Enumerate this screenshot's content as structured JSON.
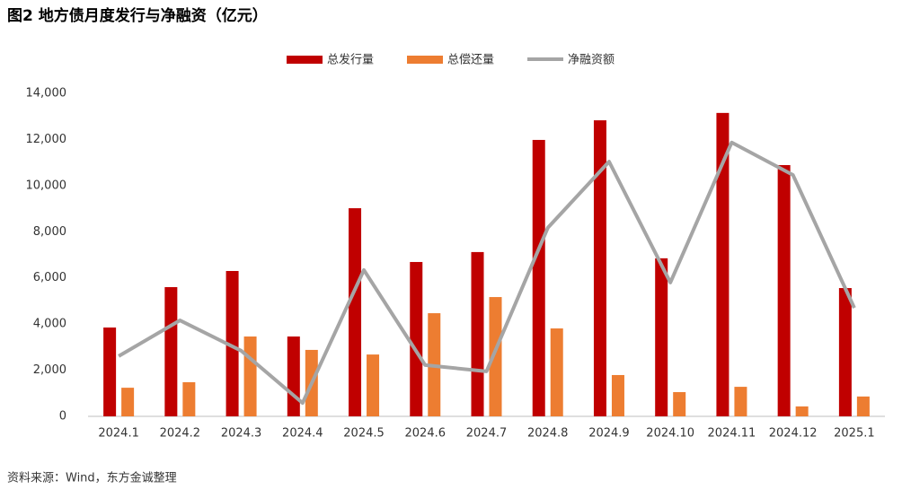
{
  "chart_data": {
    "type": "bar-line",
    "title": "图2 地方债月度发行与净融资（亿元）",
    "source": "资料来源：Wind，东方金诚整理",
    "categories": [
      "2024.1",
      "2024.2",
      "2024.3",
      "2024.4",
      "2024.5",
      "2024.6",
      "2024.7",
      "2024.8",
      "2024.9",
      "2024.10",
      "2024.11",
      "2024.12",
      "2025.1"
    ],
    "series": [
      {
        "name": "总发行量",
        "type": "bar",
        "color": "#c00000",
        "values": [
          3850,
          5600,
          6300,
          3460,
          9020,
          6690,
          7120,
          11980,
          12830,
          6850,
          13150,
          10890,
          5560
        ]
      },
      {
        "name": "总偿还量",
        "type": "bar",
        "color": "#ed7d31",
        "values": [
          1240,
          1480,
          3460,
          2880,
          2680,
          4470,
          5170,
          3810,
          1790,
          1050,
          1280,
          430,
          860
        ]
      },
      {
        "name": "净融资额",
        "type": "line",
        "color": "#a5a5a5",
        "values": [
          2610,
          4160,
          2840,
          580,
          6340,
          2220,
          1950,
          8170,
          11040,
          5800,
          11870,
          10460,
          4700
        ]
      }
    ],
    "ylim": [
      0,
      14000
    ],
    "yticks": [
      0,
      {
        "value": 2000,
        "label": "2,000"
      },
      {
        "value": 4000,
        "label": "4,000"
      },
      {
        "value": 6000,
        "label": "6,000"
      },
      {
        "value": 8000,
        "label": "8,000"
      },
      {
        "value": 10000,
        "label": "10,000"
      },
      {
        "value": 12000,
        "label": "12,000"
      },
      {
        "value": 14000,
        "label": "14,000"
      }
    ],
    "grid": false,
    "legend": "top"
  }
}
